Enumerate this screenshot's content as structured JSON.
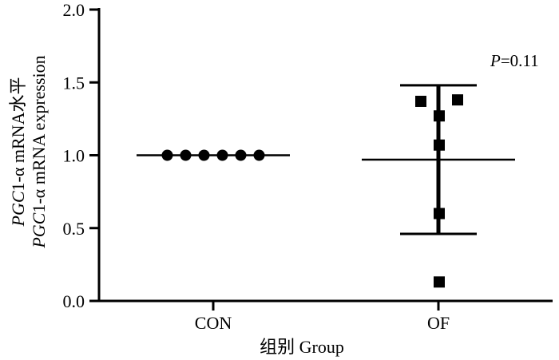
{
  "chart_data": {
    "type": "scatter",
    "categories": [
      "CON",
      "OF"
    ],
    "ylim": [
      0,
      2.0
    ],
    "yticks": [
      0.0,
      0.5,
      1.0,
      1.5,
      2.0
    ],
    "ytick_labels": [
      "0.0",
      "0.5",
      "1.0",
      "1.5",
      "2.0"
    ],
    "xlabel": "组别 Group",
    "ylabel_italic": "PGC",
    "ylabel_line1_rest": "1-α mRNA水平",
    "ylabel_line2_rest": "1-α mRNA expression",
    "annotation_italic": "P",
    "annotation_rest": "=0.11",
    "grid": false,
    "series": [
      {
        "category": "CON",
        "marker": "circle",
        "points": [
          1.0,
          1.0,
          1.0,
          1.0,
          1.0,
          1.0
        ],
        "mean": 1.0,
        "sd": 0.0
      },
      {
        "category": "OF",
        "marker": "square",
        "points": [
          1.37,
          1.38,
          1.27,
          1.07,
          0.6,
          0.13
        ],
        "mean": 0.97,
        "sd": 0.51
      }
    ]
  }
}
